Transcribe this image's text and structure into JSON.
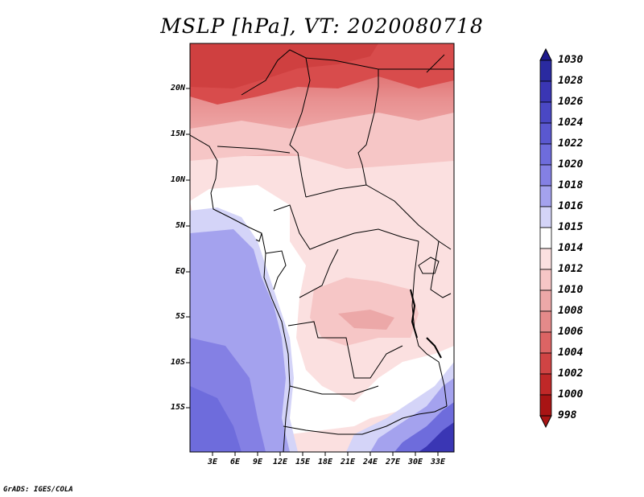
{
  "title": "MSLP [hPa], VT: 2020080718",
  "credit": "GrADS: IGES/COLA",
  "map": {
    "lat_labels": [
      "20N",
      "15N",
      "10N",
      "5N",
      "EQ",
      "5S",
      "10S",
      "15S"
    ],
    "lon_labels": [
      "3E",
      "6E",
      "9E",
      "12E",
      "15E",
      "18E",
      "21E",
      "24E",
      "27E",
      "30E",
      "33E"
    ]
  },
  "colorbar": {
    "levels": [
      "1030",
      "1028",
      "1026",
      "1024",
      "1022",
      "1020",
      "1018",
      "1016",
      "1015",
      "1014",
      "1012",
      "1010",
      "1008",
      "1006",
      "1004",
      "1002",
      "1000",
      "998"
    ],
    "colors": {
      "1030": "#1f1a8c",
      "1028": "#2a2aa0",
      "1026": "#3a36b4",
      "1024": "#4a48c4",
      "1022": "#5a58d0",
      "1020": "#6e6cdc",
      "1018": "#8480e4",
      "1016": "#a4a2ee",
      "1015": "#d4d4f8",
      "1014": "#ffffff",
      "1012": "#fbe0e0",
      "1010": "#f6c6c6",
      "1008": "#eca8a8",
      "1006": "#e48a8a",
      "1004": "#dc6464",
      "1002": "#d04444",
      "1000": "#c02828",
      "998": "#a81414"
    }
  }
}
